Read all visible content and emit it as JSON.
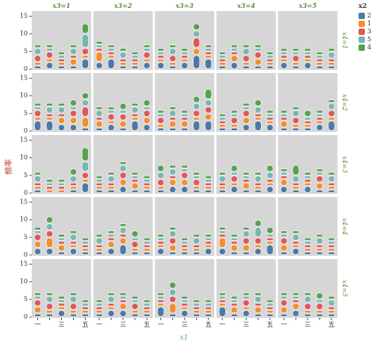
{
  "chart_data": {
    "type": "bar",
    "stacked": true,
    "x_label": "x1",
    "y_label": "频率",
    "legend_title": "x2",
    "column_labels": [
      "x3=1",
      "x3=2",
      "x3=3",
      "x3=4",
      "x3=5"
    ],
    "row_labels": [
      "x4=1",
      "x4=2",
      "x4=3",
      "x4=4",
      "x4=5"
    ],
    "categories": [
      "一",
      null,
      "三",
      null,
      "五"
    ],
    "ylim": [
      0,
      16
    ],
    "yticks": [
      0,
      5,
      10,
      15
    ],
    "series": [
      {
        "name": "2",
        "color": "#4e79a7",
        "values": [
          [
            1,
            2,
            1,
            1,
            3
          ],
          [
            2,
            3,
            1,
            1,
            2
          ],
          [
            2,
            1,
            2,
            4,
            3
          ],
          [
            1,
            2,
            1,
            1,
            1
          ],
          [
            2,
            1,
            2,
            1,
            1
          ],
          [
            3,
            3,
            2,
            2,
            1
          ],
          [
            1,
            2,
            1,
            3,
            2
          ],
          [
            1,
            1,
            1,
            3,
            3
          ],
          [
            1,
            1,
            2,
            3,
            2
          ],
          [
            1,
            1,
            1,
            2,
            3
          ],
          [
            1,
            0,
            0,
            1,
            3
          ],
          [
            1,
            1,
            2,
            1,
            1
          ],
          [
            1,
            2,
            2,
            1,
            1
          ],
          [
            1,
            2,
            1,
            1,
            2
          ],
          [
            2,
            1,
            2,
            1,
            1
          ],
          [
            2,
            2,
            1,
            2,
            1
          ],
          [
            1,
            2,
            3,
            1,
            1
          ],
          [
            2,
            1,
            1,
            1,
            2
          ],
          [
            2,
            1,
            1,
            2,
            3
          ],
          [
            1,
            2,
            1,
            1,
            1
          ],
          [
            1,
            1,
            2,
            1,
            1
          ],
          [
            1,
            2,
            2,
            1,
            1
          ],
          [
            3,
            1,
            2,
            1,
            1
          ],
          [
            3,
            1,
            2,
            1,
            1
          ],
          [
            1,
            2,
            1,
            1,
            1
          ]
        ]
      },
      {
        "name": "1",
        "color": "#f28e2b",
        "values": [
          [
            1,
            1,
            1,
            2,
            1
          ],
          [
            3,
            1,
            1,
            1,
            1
          ],
          [
            1,
            1,
            1,
            2,
            1
          ],
          [
            1,
            2,
            1,
            2,
            1
          ],
          [
            1,
            1,
            1,
            1,
            1
          ],
          [
            1,
            1,
            2,
            2,
            3
          ],
          [
            2,
            1,
            2,
            1,
            2
          ],
          [
            1,
            2,
            2,
            1,
            2
          ],
          [
            1,
            1,
            2,
            1,
            1
          ],
          [
            2,
            1,
            1,
            1,
            1
          ],
          [
            1,
            1,
            1,
            1,
            1
          ],
          [
            1,
            1,
            2,
            2,
            1
          ],
          [
            1,
            2,
            2,
            1,
            1
          ],
          [
            1,
            1,
            2,
            1,
            1
          ],
          [
            2,
            1,
            1,
            2,
            1
          ],
          [
            2,
            3,
            2,
            1,
            1
          ],
          [
            1,
            2,
            2,
            1,
            1
          ],
          [
            1,
            2,
            1,
            1,
            1
          ],
          [
            3,
            2,
            2,
            1,
            1
          ],
          [
            2,
            1,
            1,
            1,
            1
          ],
          [
            2,
            1,
            1,
            1,
            1
          ],
          [
            1,
            1,
            2,
            1,
            1
          ],
          [
            1,
            3,
            1,
            1,
            1
          ],
          [
            1,
            2,
            1,
            2,
            1
          ],
          [
            2,
            2,
            1,
            1,
            1
          ]
        ]
      },
      {
        "name": "3",
        "color": "#e15759",
        "values": [
          [
            2,
            2,
            1,
            1,
            2
          ],
          [
            1,
            1,
            1,
            1,
            2
          ],
          [
            1,
            2,
            1,
            3,
            1
          ],
          [
            1,
            1,
            2,
            2,
            1
          ],
          [
            1,
            2,
            1,
            1,
            1
          ],
          [
            2,
            1,
            1,
            2,
            3
          ],
          [
            1,
            2,
            2,
            1,
            2
          ],
          [
            2,
            1,
            1,
            2,
            2
          ],
          [
            1,
            2,
            2,
            1,
            1
          ],
          [
            1,
            2,
            1,
            1,
            2
          ],
          [
            1,
            1,
            1,
            1,
            2
          ],
          [
            1,
            1,
            2,
            1,
            1
          ],
          [
            2,
            1,
            2,
            2,
            1
          ],
          [
            1,
            2,
            1,
            1,
            1
          ],
          [
            1,
            1,
            1,
            2,
            1
          ],
          [
            2,
            2,
            1,
            1,
            1
          ],
          [
            1,
            1,
            1,
            2,
            1
          ],
          [
            1,
            2,
            1,
            1,
            1
          ],
          [
            1,
            1,
            2,
            2,
            1
          ],
          [
            2,
            1,
            1,
            1,
            1
          ],
          [
            2,
            2,
            1,
            2,
            1
          ],
          [
            1,
            1,
            1,
            2,
            1
          ],
          [
            1,
            2,
            1,
            1,
            1
          ],
          [
            1,
            1,
            2,
            1,
            1
          ],
          [
            2,
            1,
            2,
            2,
            1
          ]
        ]
      },
      {
        "name": "5",
        "color": "#76b7b2",
        "values": [
          [
            2,
            1,
            1,
            2,
            4
          ],
          [
            1,
            1,
            2,
            1,
            1
          ],
          [
            1,
            2,
            1,
            2,
            1
          ],
          [
            1,
            1,
            2,
            1,
            1
          ],
          [
            1,
            1,
            1,
            1,
            2
          ],
          [
            1,
            2,
            2,
            1,
            2
          ],
          [
            2,
            1,
            1,
            2,
            1
          ],
          [
            1,
            2,
            1,
            2,
            2
          ],
          [
            1,
            1,
            1,
            2,
            1
          ],
          [
            1,
            2,
            1,
            1,
            2
          ],
          [
            2,
            1,
            1,
            2,
            3
          ],
          [
            1,
            2,
            2,
            1,
            1
          ],
          [
            2,
            2,
            1,
            1,
            1
          ],
          [
            2,
            1,
            1,
            2,
            2
          ],
          [
            1,
            2,
            1,
            1,
            2
          ],
          [
            1,
            2,
            1,
            2,
            1
          ],
          [
            2,
            1,
            2,
            1,
            1
          ],
          [
            1,
            2,
            1,
            2,
            1
          ],
          [
            1,
            1,
            2,
            3,
            1
          ],
          [
            1,
            2,
            1,
            2,
            1
          ],
          [
            1,
            2,
            1,
            2,
            1
          ],
          [
            1,
            2,
            1,
            1,
            1
          ],
          [
            1,
            2,
            1,
            1,
            1
          ],
          [
            1,
            1,
            1,
            2,
            1
          ],
          [
            1,
            1,
            2,
            1,
            2
          ]
        ]
      },
      {
        "name": "4",
        "color": "#59a14f",
        "values": [
          [
            1,
            1,
            1,
            1,
            3
          ],
          [
            1,
            1,
            1,
            1,
            1
          ],
          [
            1,
            1,
            1,
            2,
            1
          ],
          [
            1,
            1,
            1,
            1,
            1
          ],
          [
            1,
            1,
            1,
            1,
            1
          ],
          [
            1,
            1,
            1,
            2,
            2
          ],
          [
            1,
            1,
            2,
            1,
            2
          ],
          [
            1,
            1,
            1,
            2,
            3
          ],
          [
            1,
            1,
            1,
            2,
            1
          ],
          [
            1,
            1,
            2,
            1,
            1
          ],
          [
            1,
            1,
            1,
            2,
            4
          ],
          [
            1,
            1,
            1,
            1,
            1
          ],
          [
            2,
            1,
            1,
            1,
            1
          ],
          [
            1,
            2,
            1,
            1,
            2
          ],
          [
            1,
            3,
            1,
            1,
            1
          ],
          [
            1,
            2,
            1,
            1,
            1
          ],
          [
            1,
            1,
            1,
            2,
            1
          ],
          [
            1,
            1,
            1,
            1,
            1
          ],
          [
            1,
            1,
            1,
            2,
            2
          ],
          [
            1,
            1,
            1,
            1,
            1
          ],
          [
            1,
            1,
            1,
            1,
            1
          ],
          [
            1,
            1,
            1,
            1,
            1
          ],
          [
            1,
            2,
            1,
            1,
            1
          ],
          [
            1,
            1,
            1,
            1,
            1
          ],
          [
            1,
            1,
            1,
            2,
            1
          ]
        ]
      }
    ]
  }
}
